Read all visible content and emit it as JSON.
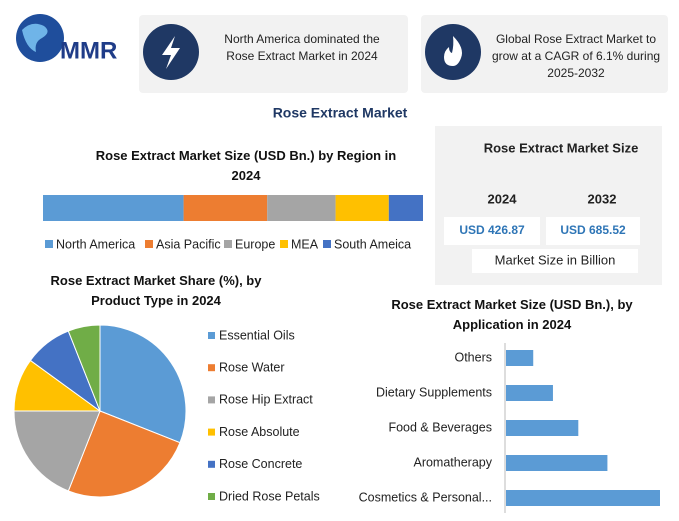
{
  "header": {
    "logo": "MMR",
    "cards": [
      {
        "text": "North America dominated the Rose Extract Market in 2024"
      },
      {
        "text": "Global Rose Extract Market to grow at a CAGR of 6.1% during 2025-2032"
      }
    ]
  },
  "title": "Rose Extract Market",
  "market_size": {
    "title": "Rose Extract Market Size",
    "columns": [
      {
        "year": "2024",
        "value": "USD 426.87"
      },
      {
        "year": "2032",
        "value": "USD 685.52"
      }
    ],
    "note": "Market Size in Billion"
  },
  "chart_data": [
    {
      "type": "stacked_bar",
      "title": "Rose Extract Market Size (USD Bn.) by Region in 2024",
      "series": [
        {
          "name": "North America",
          "color": "#5b9bd5",
          "values": [
            37
          ]
        },
        {
          "name": "Asia Pacific",
          "color": "#ed7d31",
          "values": [
            22
          ]
        },
        {
          "name": "Europe",
          "color": "#a5a5a5",
          "values": [
            18
          ]
        },
        {
          "name": "MEA",
          "color": "#ffc000",
          "values": [
            14
          ]
        },
        {
          "name": "South Ameica",
          "color": "#4472c4",
          "values": [
            9
          ]
        }
      ]
    },
    {
      "type": "pie",
      "title": "Rose Extract Market Share (%), by Product Type in 2024",
      "categories": [
        "Essential Oils",
        "Rose Water",
        "Rose Hip Extract",
        "Rose Absolute",
        "Rose Concrete",
        "Dried Rose Petals"
      ],
      "values": [
        31,
        25,
        19,
        10,
        9,
        6
      ],
      "colors": [
        "#5b9bd5",
        "#ed7d31",
        "#a5a5a5",
        "#ffc000",
        "#4472c4",
        "#70ad47"
      ]
    },
    {
      "type": "bar",
      "title": "Rose Extract Market Size (USD Bn.), by Application in 2024",
      "categories": [
        "Others",
        "Dietary Supplements",
        "Food & Beverages",
        "Aromatherapy",
        "Cosmetics & Personal..."
      ],
      "values": [
        29,
        50,
        77,
        108,
        164
      ],
      "color": "#5b9bd5"
    }
  ]
}
